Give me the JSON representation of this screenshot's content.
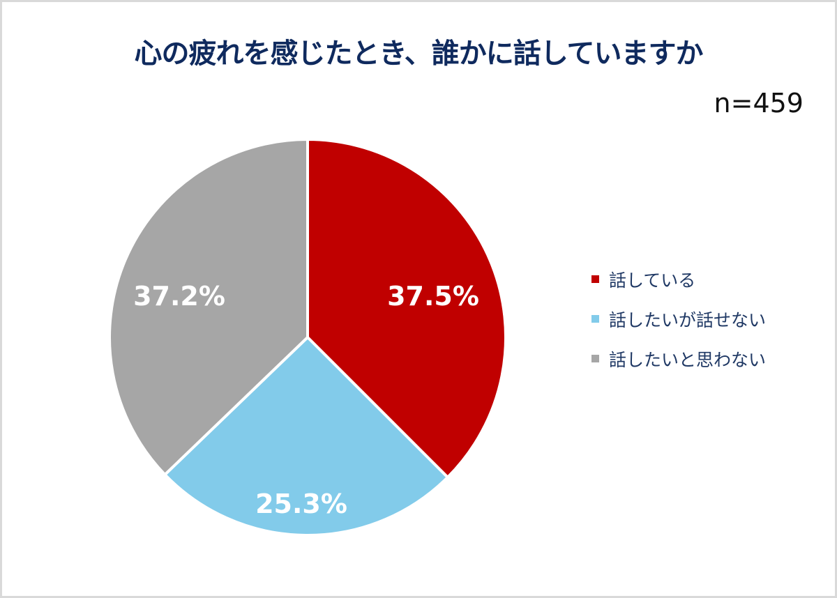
{
  "title": "心の疲れを感じたとき、誰かに話していますか",
  "sample_size": "n=459",
  "chart_data": {
    "type": "pie",
    "title": "心の疲れを感じたとき、誰かに話していますか",
    "subtitle": "n=459",
    "categories": [
      "話している",
      "話したいが話せない",
      "話したいと思わない"
    ],
    "values": [
      37.5,
      25.3,
      37.2
    ],
    "labels": [
      "37.5%",
      "25.3%",
      "37.2%"
    ],
    "colors": [
      "#c00000",
      "#82cbea",
      "#a6a6a6"
    ],
    "start_angle_deg": 0,
    "direction": "clockwise",
    "legend_position": "right"
  },
  "legend": {
    "items": [
      {
        "label": "話している",
        "color": "#c00000"
      },
      {
        "label": "話したいが話せない",
        "color": "#82cbea"
      },
      {
        "label": "話したいと思わない",
        "color": "#a6a6a6"
      }
    ]
  }
}
